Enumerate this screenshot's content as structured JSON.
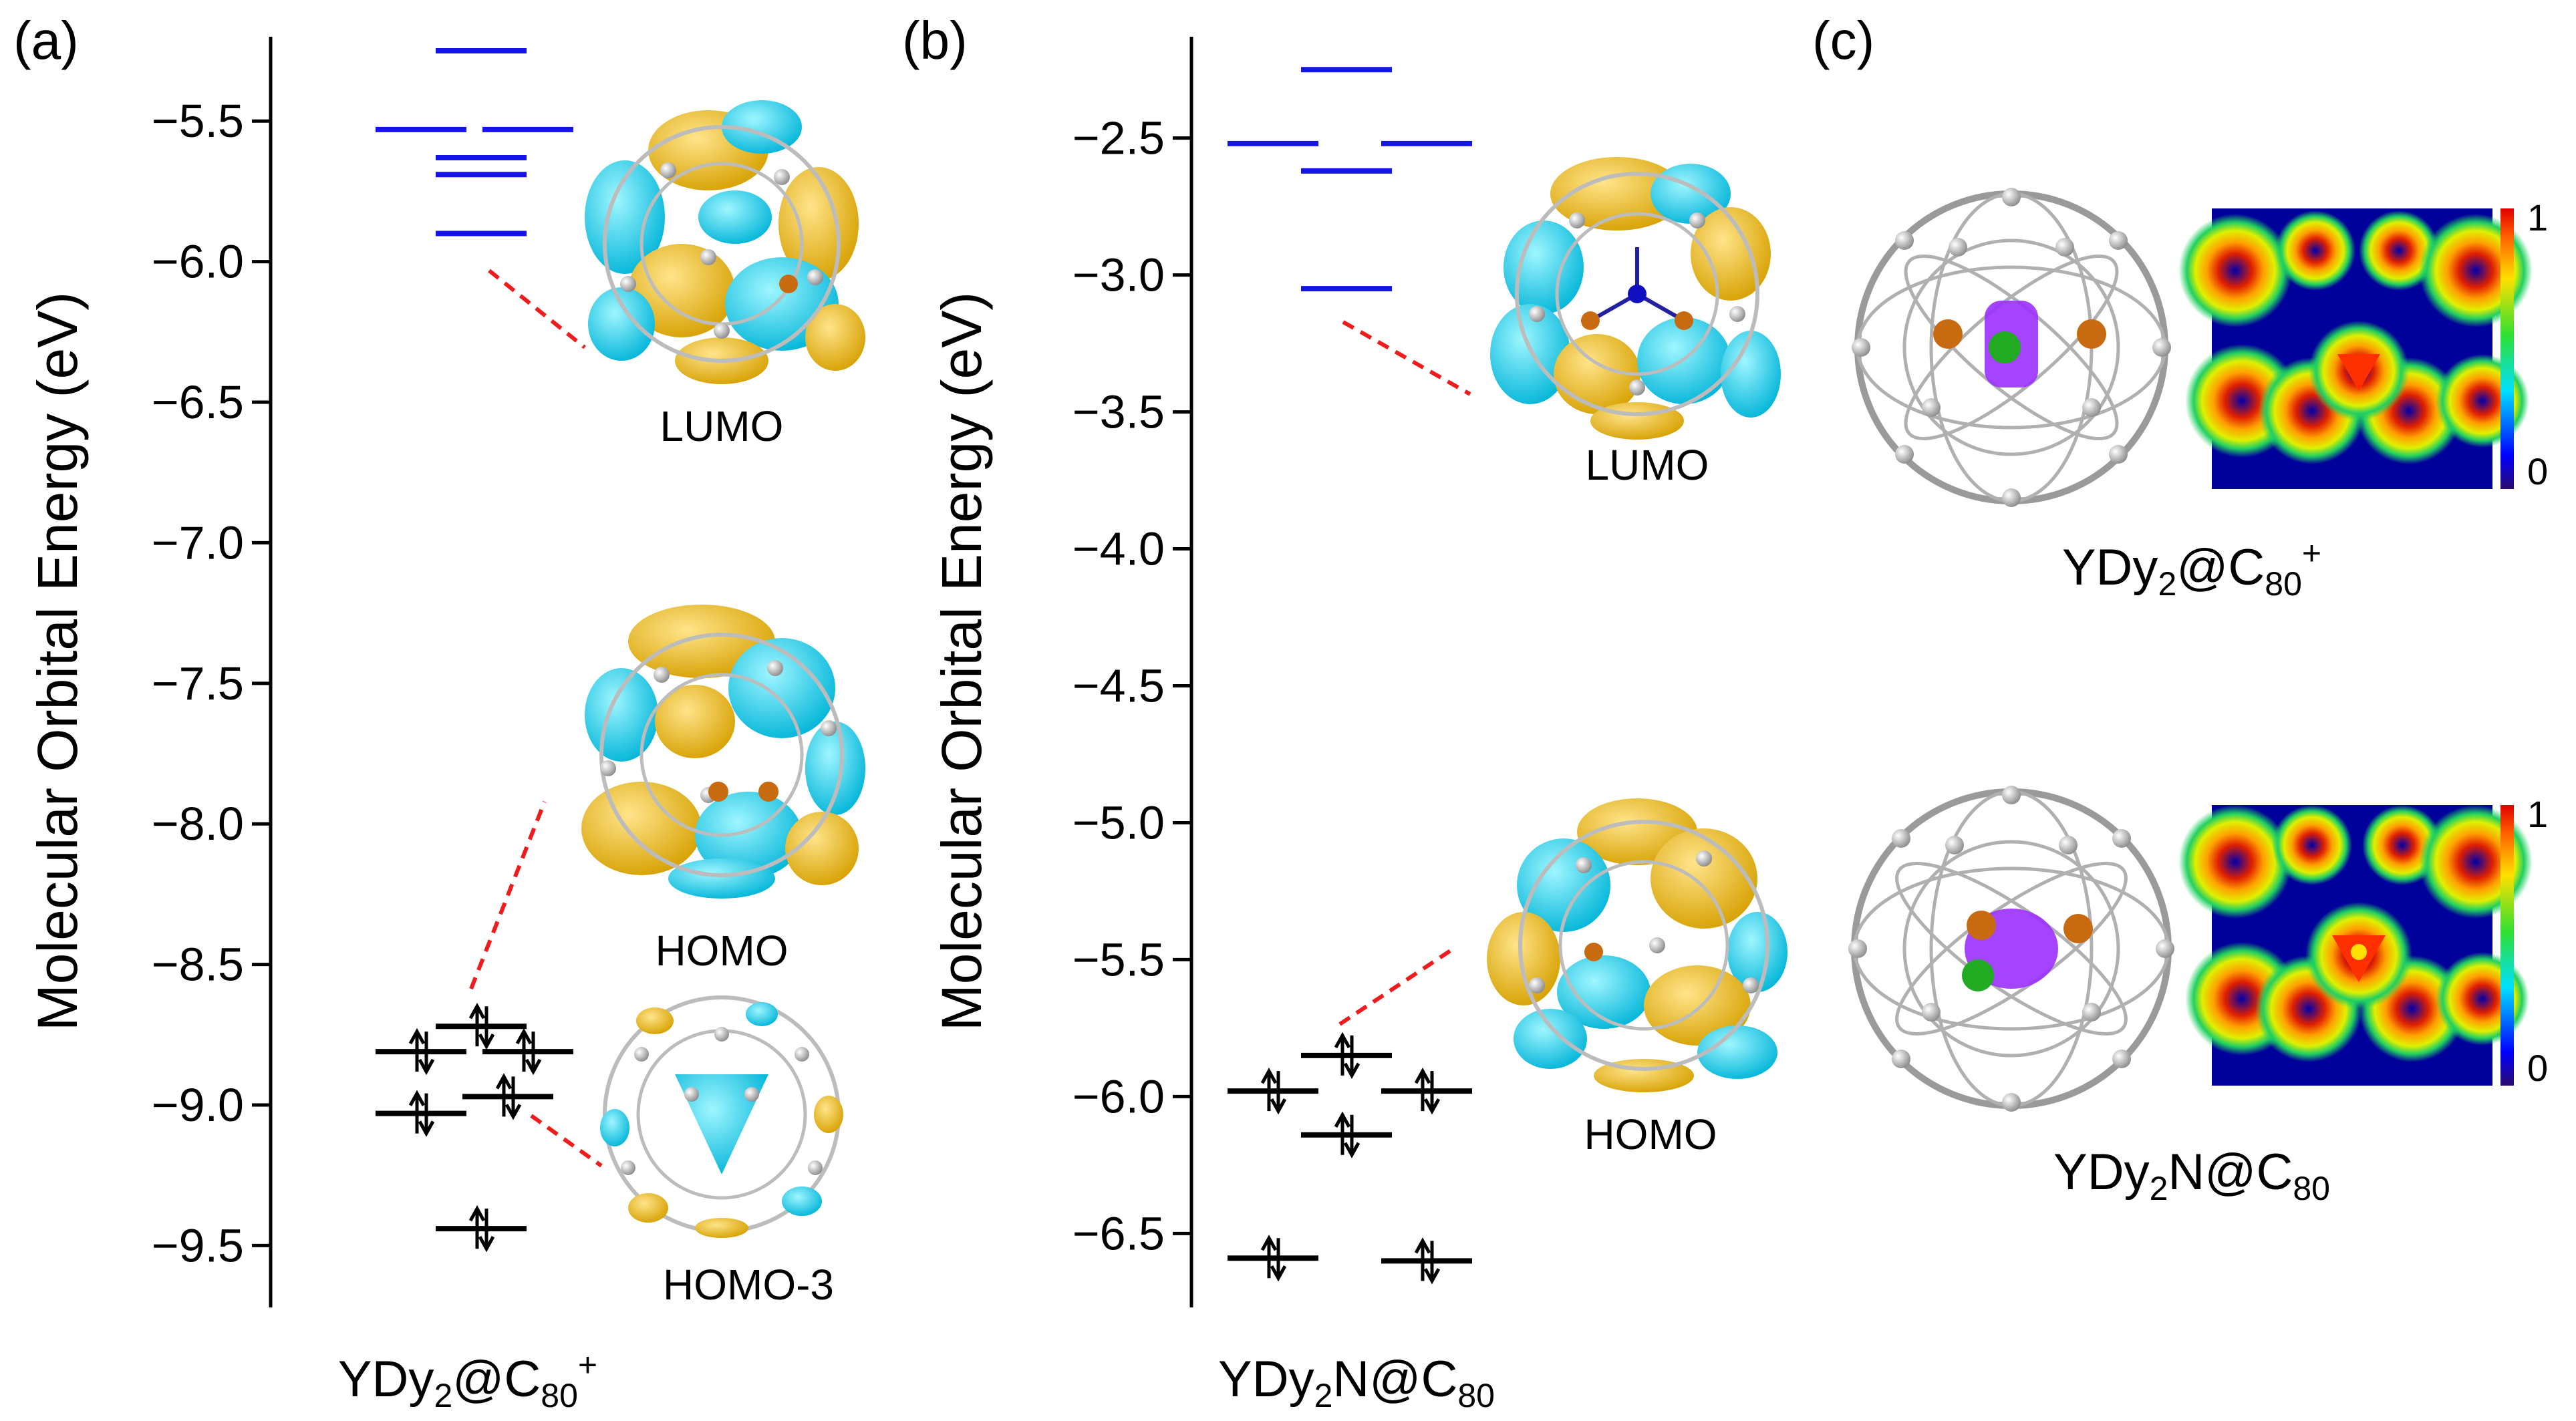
{
  "panels": {
    "a": {
      "tag": "(a)"
    },
    "b": {
      "tag": "(b)"
    },
    "c": {
      "tag": "(c)"
    }
  },
  "chart_data": [
    {
      "type": "energy-level-diagram",
      "panel": "(a)",
      "ylabel": "Molecular Orbital Energy (eV)",
      "ylim": [
        -9.72,
        -5.2
      ],
      "yticks": [
        -5.5,
        -6.0,
        -6.5,
        -7.0,
        -7.5,
        -8.0,
        -8.5,
        -9.0,
        -9.5
      ],
      "ytick_labels": [
        "−5.5",
        "−6.0",
        "−6.5",
        "−7.0",
        "−7.5",
        "−8.0",
        "−8.5",
        "−9.0",
        "−9.5"
      ],
      "unoccupied_levels": [
        -5.25,
        -5.53,
        -5.53,
        -5.63,
        -5.69,
        -5.9
      ],
      "occupied_levels": [
        -8.72,
        -8.81,
        -8.81,
        -8.97,
        -9.03,
        -9.44
      ],
      "orbital_labels": [
        "LUMO",
        "HOMO",
        "HOMO-3"
      ],
      "molecule": {
        "pre": "YDy",
        "sub1": "2",
        "mid": "@C",
        "sub2": "80",
        "sup": "+"
      },
      "colors": {
        "unoccupied": "#1414e6",
        "occupied": "#000000",
        "connector": "#ee1c1c",
        "lobe_a": "#00c8e0",
        "lobe_b": "#e8b400"
      }
    },
    {
      "type": "energy-level-diagram",
      "panel": "(b)",
      "ylabel": "Molecular Orbital Energy (eV)",
      "ylim": [
        -6.77,
        -2.13
      ],
      "yticks": [
        -2.5,
        -3.0,
        -3.5,
        -4.0,
        -4.5,
        -5.0,
        -5.5,
        -6.0,
        -6.5
      ],
      "ytick_labels": [
        "−2.5",
        "−3.0",
        "−3.5",
        "−4.0",
        "−4.5",
        "−5.0",
        "−5.5",
        "−6.0",
        "−6.5"
      ],
      "unoccupied_levels": [
        -2.25,
        -2.52,
        -2.52,
        -2.62,
        -3.05
      ],
      "occupied_levels": [
        -5.85,
        -5.98,
        -5.98,
        -6.14,
        -6.59,
        -6.6
      ],
      "orbital_labels": [
        "LUMO",
        "HOMO"
      ],
      "molecule": {
        "pre": "YDy",
        "sub1": "2",
        "mid": "N@C",
        "sub2": "80",
        "sup": ""
      },
      "colors": {
        "unoccupied": "#1414e6",
        "occupied": "#000000",
        "connector": "#ee1c1c",
        "lobe_a": "#00c8e0",
        "lobe_b": "#e8b400"
      }
    },
    {
      "type": "heatmap",
      "panel": "(c)",
      "colorbar": {
        "min_label": "0",
        "max_label": "1",
        "range": [
          0,
          1
        ]
      },
      "rows": [
        {
          "molecule": {
            "pre": "YDy",
            "sub1": "2",
            "mid": "@C",
            "sub2": "80",
            "sup": "+"
          }
        },
        {
          "molecule": {
            "pre": "YDy",
            "sub1": "2",
            "mid": "N@C",
            "sub2": "80",
            "sup": ""
          }
        }
      ],
      "colors": {
        "cage": "#b8b8b8",
        "dy_atom": "#c86a10",
        "y_atom": "#22aa22",
        "density": "#9b30ff"
      }
    }
  ]
}
